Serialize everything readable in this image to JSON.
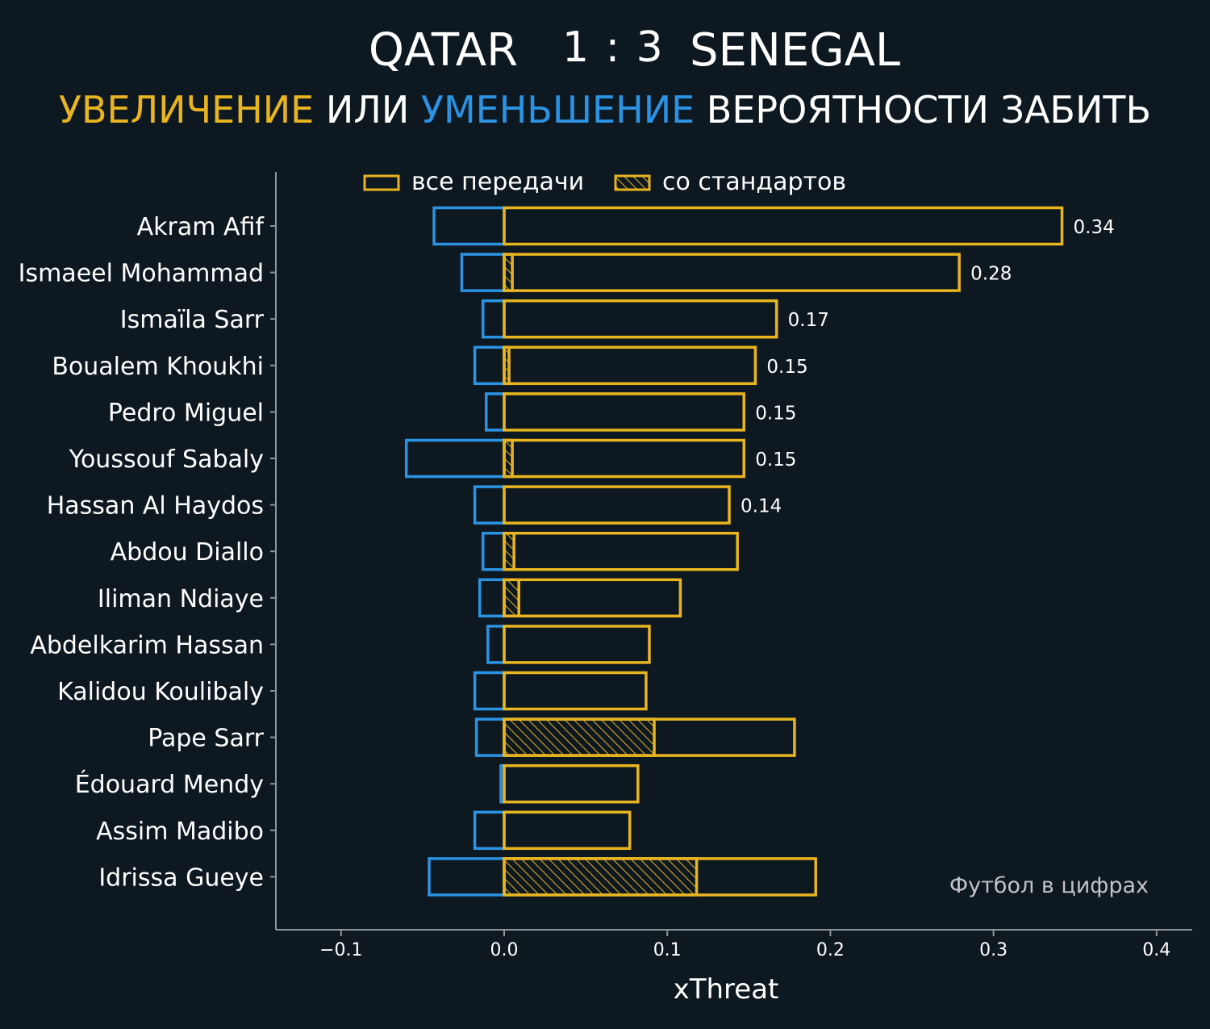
{
  "header": {
    "home_team": "QATAR",
    "score": "1 : 3",
    "away_team": "SENEGAL",
    "subtitle_increase": "УВЕЛИЧЕНИЕ",
    "subtitle_or": "ИЛИ",
    "subtitle_decrease": "УМЕНЬШЕНИЕ",
    "subtitle_rest": "ВЕРОЯТНОСТИ ЗАБИТЬ"
  },
  "colors": {
    "background": "#0e1821",
    "increase": "#e8b520",
    "decrease": "#2b93e3",
    "axis": "#8d969c"
  },
  "watermark": "Футбол в цифрах",
  "chart_data": {
    "type": "bar",
    "orientation": "horizontal",
    "xlabel": "xThreat",
    "xlim": [
      -0.14,
      0.42
    ],
    "xticks": [
      -0.1,
      0.0,
      0.1,
      0.2,
      0.3,
      0.4
    ],
    "xtick_labels": [
      "−0.1",
      "0.0",
      "0.1",
      "0.2",
      "0.3",
      "0.4"
    ],
    "legend": {
      "position": "top",
      "entries": [
        "все передачи",
        "со стандартов"
      ]
    },
    "categories": [
      "Akram Afif",
      "Ismaeel Mohammad",
      "Ismaïla Sarr",
      "Boualem Khoukhi",
      "Pedro Miguel",
      "Youssouf Sabaly",
      "Hassan Al Haydos",
      "Abdou Diallo",
      "Iliman Ndiaye",
      "Abdelkarim Hassan",
      "Kalidou Koulibaly",
      "Pape Sarr",
      "Édouard Mendy",
      "Assim Madibo",
      "Idrissa Gueye"
    ],
    "series": [
      {
        "name": "все передачи",
        "kind": "positive",
        "values": [
          0.342,
          0.279,
          0.167,
          0.154,
          0.147,
          0.147,
          0.138,
          0.143,
          0.108,
          0.089,
          0.087,
          0.178,
          0.082,
          0.077,
          0.191
        ]
      },
      {
        "name": "со стандартов",
        "kind": "positive-set-pieces",
        "values": [
          0.0,
          0.005,
          0.0,
          0.003,
          0.0,
          0.005,
          0.0,
          0.006,
          0.009,
          0.0,
          0.0,
          0.092,
          0.0,
          0.0,
          0.118
        ]
      },
      {
        "kind": "negative",
        "values": [
          -0.043,
          -0.026,
          -0.013,
          -0.018,
          -0.011,
          -0.06,
          -0.018,
          -0.013,
          -0.015,
          -0.01,
          -0.018,
          -0.017,
          -0.002,
          -0.018,
          -0.046
        ]
      }
    ],
    "value_labels": [
      "0.34",
      "0.28",
      "0.17",
      "0.15",
      "0.15",
      "0.15",
      "0.14",
      "",
      "",
      "",
      "",
      "",
      "",
      "",
      ""
    ]
  }
}
